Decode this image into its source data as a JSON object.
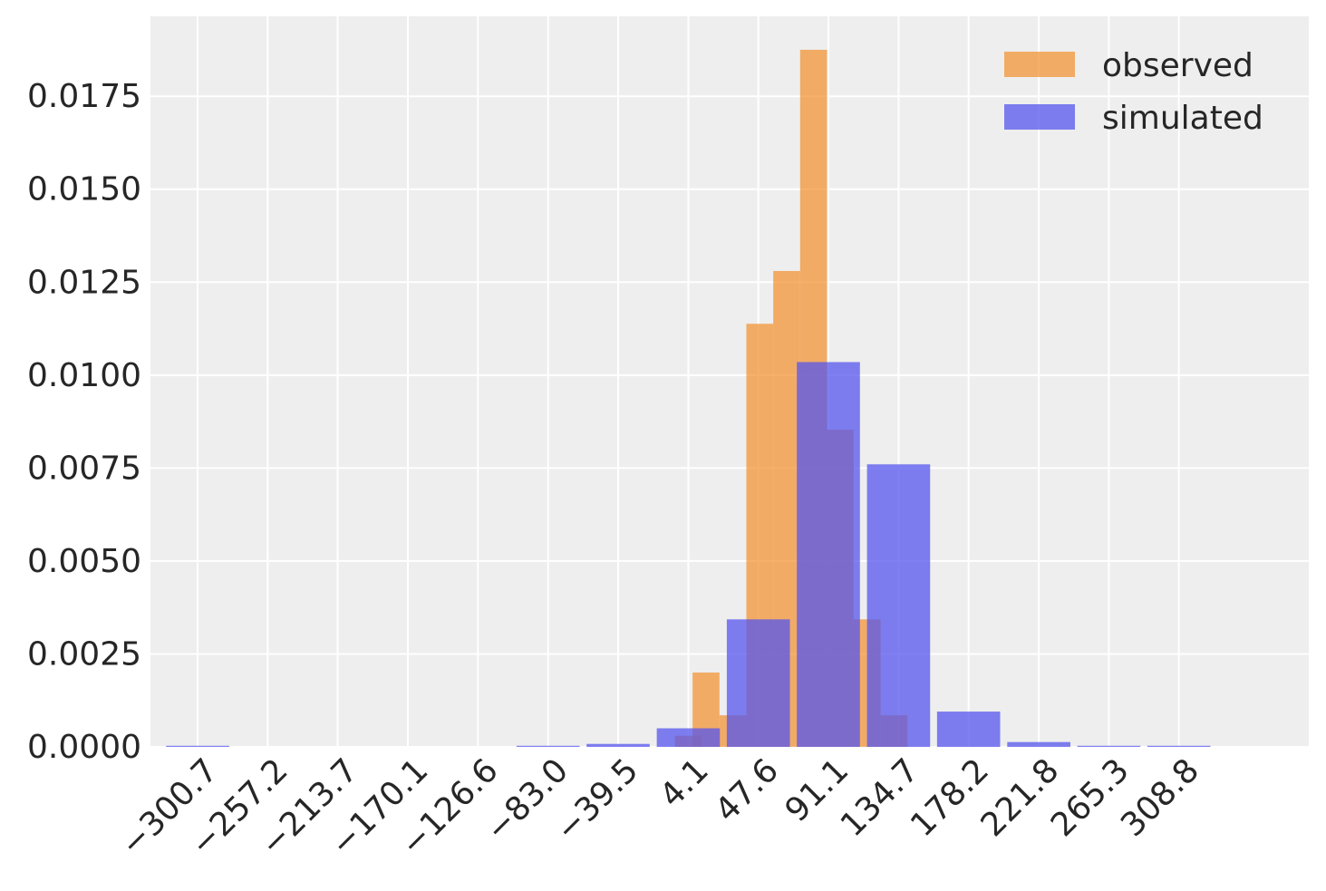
{
  "chart_data": {
    "type": "bar",
    "title": "",
    "xlabel": "",
    "ylabel": "",
    "xlim": [
      -330.0,
      389.5
    ],
    "ylim": [
      0,
      0.01965
    ],
    "grid": true,
    "x_ticks": [
      -300.7,
      -257.2,
      -213.7,
      -170.1,
      -126.6,
      -83.0,
      -39.5,
      4.1,
      47.6,
      91.1,
      134.7,
      178.2,
      221.8,
      265.3,
      308.8
    ],
    "x_tick_labels": [
      "−300.7",
      "−257.2",
      "−213.7",
      "−170.1",
      "−126.6",
      "−83.0",
      "−39.5",
      "4.1",
      "47.6",
      "91.1",
      "134.7",
      "178.2",
      "221.8",
      "265.3",
      "308.8"
    ],
    "y_ticks": [
      0.0,
      0.0025,
      0.005,
      0.0075,
      0.01,
      0.0125,
      0.015,
      0.0175
    ],
    "y_tick_labels": [
      "0.0000",
      "0.0025",
      "0.0050",
      "0.0075",
      "0.0100",
      "0.0125",
      "0.0150",
      "0.0175"
    ],
    "legend": {
      "placement": "top-right",
      "entries": [
        "observed",
        "simulated"
      ]
    },
    "series": [
      {
        "name": "observed",
        "color": "#f28e2b",
        "opacity": 0.7,
        "bin_width": 16.7,
        "bins": [
          {
            "x": 4.1,
            "height": 0.0003
          },
          {
            "x": 15.1,
            "height": 0.002
          },
          {
            "x": 31.8,
            "height": 0.00085
          },
          {
            "x": 48.5,
            "height": 0.01138
          },
          {
            "x": 65.2,
            "height": 0.0128
          },
          {
            "x": 81.9,
            "height": 0.01875
          },
          {
            "x": 98.5,
            "height": 0.00853
          },
          {
            "x": 115.2,
            "height": 0.00343
          },
          {
            "x": 131.9,
            "height": 0.00085
          }
        ]
      },
      {
        "name": "simulated",
        "color": "#5555ee",
        "opacity": 0.75,
        "bin_width": 39.2,
        "bins": [
          {
            "x": -300.7,
            "height": 3e-05
          },
          {
            "x": -257.2,
            "height": 0.0
          },
          {
            "x": -213.7,
            "height": 0.0
          },
          {
            "x": -170.1,
            "height": 0.0
          },
          {
            "x": -126.6,
            "height": 0.0
          },
          {
            "x": -83.0,
            "height": 3e-05
          },
          {
            "x": -39.5,
            "height": 8e-05
          },
          {
            "x": 4.1,
            "height": 0.0005
          },
          {
            "x": 47.6,
            "height": 0.00343
          },
          {
            "x": 91.1,
            "height": 0.01035
          },
          {
            "x": 134.7,
            "height": 0.0076
          },
          {
            "x": 178.2,
            "height": 0.00095
          },
          {
            "x": 221.8,
            "height": 0.00013
          },
          {
            "x": 265.3,
            "height": 3e-05
          },
          {
            "x": 308.8,
            "height": 3e-05
          }
        ]
      }
    ]
  }
}
